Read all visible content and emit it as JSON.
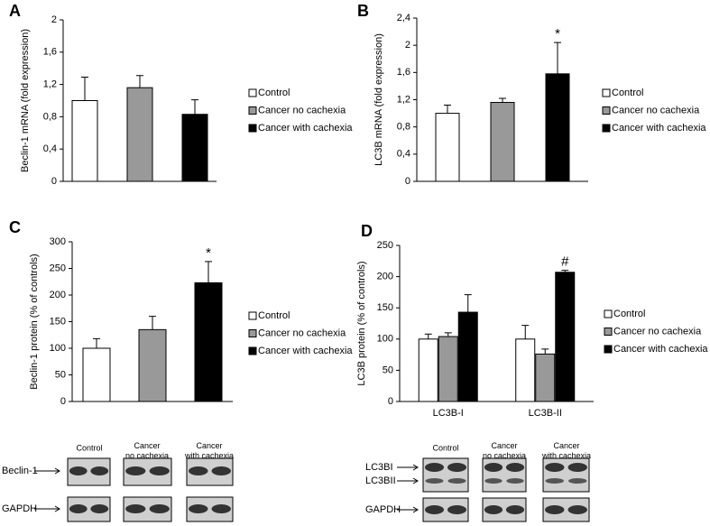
{
  "chart_data": [
    {
      "type": "bar",
      "panel": "A",
      "y_label": "Beclin-1 mRNA (fold expression)",
      "categories": [
        null
      ],
      "ylim": [
        0,
        2
      ],
      "yticks": [
        0,
        {
          "value": 0.4,
          "label": "0,4"
        },
        {
          "value": 0.8,
          "label": "0,8"
        },
        {
          "value": 1.2,
          "label": "1,2"
        },
        {
          "value": 1.6,
          "label": "1,6"
        },
        2
      ],
      "series": [
        {
          "name": "Control",
          "color": "#ffffff",
          "values": [
            1.0
          ],
          "errors": [
            0.29
          ]
        },
        {
          "name": "Cancer no cachexia",
          "color": "#999999",
          "values": [
            1.16
          ],
          "errors": [
            0.15
          ]
        },
        {
          "name": "Cancer with cachexia",
          "color": "#000000",
          "values": [
            0.83
          ],
          "errors": [
            0.18
          ]
        }
      ]
    },
    {
      "type": "bar",
      "panel": "B",
      "y_label": "LC3B mRNA (fold expression)",
      "categories": [
        null
      ],
      "ylim": [
        0,
        2.4
      ],
      "yticks": [
        0,
        {
          "value": 0.4,
          "label": "0,4"
        },
        {
          "value": 0.8,
          "label": "0,8"
        },
        {
          "value": 1.2,
          "label": "1,2"
        },
        {
          "value": 1.6,
          "label": "1,6"
        },
        2,
        {
          "value": 2.4,
          "label": "2,4"
        }
      ],
      "series": [
        {
          "name": "Control",
          "color": "#ffffff",
          "values": [
            1.0
          ],
          "errors": [
            0.12
          ]
        },
        {
          "name": "Cancer no cachexia",
          "color": "#999999",
          "values": [
            1.16
          ],
          "errors": [
            0.06
          ]
        },
        {
          "name": "Cancer with cachexia",
          "color": "#000000",
          "values": [
            1.58
          ],
          "errors": [
            0.46
          ],
          "annotations": [
            "*"
          ]
        }
      ]
    },
    {
      "type": "bar",
      "panel": "C",
      "y_label": "Beclin-1 protein (% of controls)",
      "categories": [
        null
      ],
      "ylim": [
        0,
        300
      ],
      "yticks": [
        0,
        50,
        100,
        150,
        200,
        250,
        300
      ],
      "series": [
        {
          "name": "Control",
          "color": "#ffffff",
          "values": [
            100
          ],
          "errors": [
            18
          ]
        },
        {
          "name": "Cancer no cachexia",
          "color": "#999999",
          "values": [
            135
          ],
          "errors": [
            25
          ]
        },
        {
          "name": "Cancer with cachexia",
          "color": "#000000",
          "values": [
            223
          ],
          "errors": [
            40
          ],
          "annotations": [
            "*"
          ]
        }
      ]
    },
    {
      "type": "bar",
      "panel": "D",
      "y_label": "LC3B protein (% of controls)",
      "categories": [
        "LC3B-I",
        "LC3B-II"
      ],
      "ylim": [
        0,
        250
      ],
      "yticks": [
        0,
        50,
        100,
        150,
        200,
        250
      ],
      "series": [
        {
          "name": "Control",
          "color": "#ffffff",
          "values": [
            100,
            100
          ],
          "errors": [
            8,
            22
          ]
        },
        {
          "name": "Cancer no cachexia",
          "color": "#999999",
          "values": [
            104,
            76
          ],
          "errors": [
            6,
            8
          ]
        },
        {
          "name": "Cancer with cachexia",
          "color": "#000000",
          "values": [
            143,
            207
          ],
          "errors": [
            28,
            3
          ],
          "annotations": [
            null,
            "#"
          ]
        }
      ]
    }
  ],
  "blots": [
    {
      "groups": [
        [
          "Control"
        ],
        [
          "Cancer",
          "no cachexia"
        ],
        [
          "Cancer",
          "with cachexia"
        ]
      ],
      "rows": [
        "Beclin-1",
        "GAPDH"
      ]
    },
    {
      "groups": [
        [
          "Control"
        ],
        [
          "Cancer",
          "no cachexia"
        ],
        [
          "Cancer",
          "with cachexia"
        ]
      ],
      "rows": [
        "LC3BI",
        "LC3BII",
        "GAPDH"
      ]
    }
  ]
}
